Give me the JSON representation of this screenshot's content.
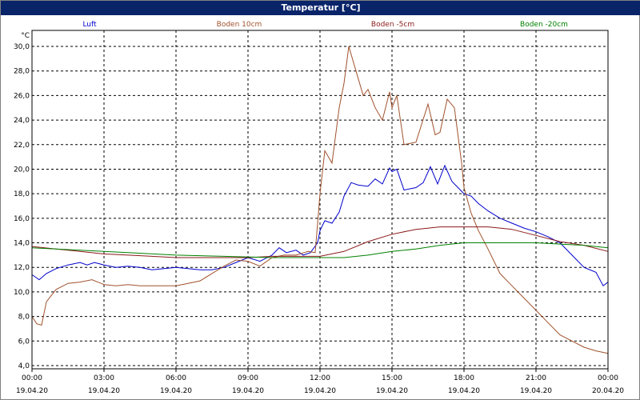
{
  "window": {
    "title": "Temperatur [°C]"
  },
  "chart_data": {
    "type": "line",
    "title": "Temperatur [°C]",
    "xlabel": "",
    "ylabel": "°C",
    "ylim": [
      4,
      31
    ],
    "yticks": [
      4,
      6,
      8,
      10,
      12,
      14,
      16,
      18,
      20,
      22,
      24,
      26,
      28,
      30
    ],
    "ytick_labels": [
      "4,0",
      "6,0",
      "8,0",
      "10,0",
      "12,0",
      "14,0",
      "16,0",
      "18,0",
      "20,0",
      "22,0",
      "24,0",
      "26,0",
      "28,0",
      "30,0"
    ],
    "xlim": [
      0,
      24
    ],
    "xticks": [
      0,
      3,
      6,
      9,
      12,
      15,
      18,
      21,
      24
    ],
    "xtick_labels": [
      [
        "00:00",
        "19.04.20"
      ],
      [
        "03:00",
        "19.04.20"
      ],
      [
        "06:00",
        "19.04.20"
      ],
      [
        "09:00",
        "19.04.20"
      ],
      [
        "12:00",
        "19.04.20"
      ],
      [
        "15:00",
        "19.04.20"
      ],
      [
        "18:00",
        "19.04.20"
      ],
      [
        "21:00",
        "19.04.20"
      ],
      [
        "00:00",
        "20.04.20"
      ]
    ],
    "grid": true,
    "legend_position": "top",
    "series": [
      {
        "name": "Luft",
        "color": "#0000cc",
        "x": [
          0,
          0.3,
          0.6,
          1,
          1.5,
          2,
          2.3,
          2.6,
          3,
          3.5,
          4,
          4.5,
          5,
          5.5,
          6,
          6.5,
          7,
          7.5,
          8,
          8.5,
          9,
          9.5,
          10,
          10.3,
          10.6,
          11,
          11.3,
          11.6,
          11.9,
          12,
          12.2,
          12.5,
          12.8,
          13,
          13.3,
          13.6,
          14,
          14.3,
          14.6,
          14.9,
          15,
          15.2,
          15.5,
          16,
          16.3,
          16.6,
          16.9,
          17.2,
          17.5,
          17.8,
          18,
          18.3,
          18.6,
          19,
          19.5,
          20,
          20.5,
          21,
          21.5,
          22,
          22.5,
          23,
          23.5,
          23.8,
          24
        ],
        "y": [
          11.4,
          11.0,
          11.5,
          11.9,
          12.2,
          12.4,
          12.2,
          12.4,
          12.2,
          12.0,
          12.1,
          12.0,
          11.8,
          11.9,
          12.0,
          11.9,
          11.8,
          11.8,
          12.0,
          12.4,
          12.8,
          12.5,
          13.0,
          13.6,
          13.2,
          13.4,
          13.0,
          13.2,
          14.0,
          15.0,
          15.8,
          15.6,
          16.5,
          17.8,
          18.9,
          18.7,
          18.6,
          19.2,
          18.8,
          20.1,
          19.8,
          20.0,
          18.3,
          18.5,
          18.9,
          20.2,
          18.8,
          20.3,
          19.0,
          18.4,
          18.0,
          17.8,
          17.2,
          16.6,
          16.0,
          15.6,
          15.2,
          14.9,
          14.5,
          14.0,
          13.0,
          12.0,
          11.6,
          10.5,
          10.8
        ]
      },
      {
        "name": "Boden 10cm",
        "color": "#a0522d",
        "x": [
          0,
          0.2,
          0.4,
          0.6,
          1,
          1.5,
          2,
          2.5,
          3,
          3.5,
          4,
          4.5,
          5,
          5.5,
          6,
          6.5,
          7,
          7.5,
          8,
          8.5,
          9,
          9.5,
          10,
          10.5,
          11,
          11.5,
          11.8,
          12,
          12.2,
          12.5,
          12.8,
          13,
          13.2,
          13.5,
          13.8,
          14,
          14.3,
          14.6,
          14.9,
          15,
          15.2,
          15.5,
          16,
          16.5,
          16.8,
          17,
          17.3,
          17.6,
          17.9,
          18,
          18.3,
          18.6,
          19,
          19.5,
          20,
          20.5,
          21,
          21.5,
          22,
          22.5,
          23,
          23.5,
          24
        ],
        "y": [
          8.0,
          7.4,
          7.3,
          9.2,
          10.2,
          10.7,
          10.8,
          11.0,
          10.6,
          10.5,
          10.6,
          10.5,
          10.5,
          10.5,
          10.5,
          10.7,
          10.9,
          11.5,
          12.1,
          12.6,
          12.5,
          12.1,
          12.8,
          13.0,
          13.0,
          13.3,
          13.2,
          18.0,
          21.5,
          20.5,
          25.0,
          27.0,
          30.0,
          28.0,
          26.0,
          26.5,
          25.0,
          24.0,
          26.3,
          25.0,
          26.0,
          22.0,
          22.2,
          25.3,
          22.8,
          23.0,
          25.7,
          25.0,
          20.5,
          18.5,
          16.4,
          15.0,
          13.5,
          11.5,
          10.5,
          9.5,
          8.5,
          7.5,
          6.5,
          6.0,
          5.5,
          5.2,
          5.0
        ]
      },
      {
        "name": "Boden -5cm",
        "color": "#8b1a1a",
        "x": [
          0,
          1,
          2,
          3,
          4,
          5,
          6,
          7,
          8,
          9,
          10,
          11,
          12,
          13,
          14,
          15,
          16,
          17,
          18,
          18.5,
          19,
          20,
          21,
          22,
          23,
          24
        ],
        "y": [
          13.7,
          13.5,
          13.3,
          13.1,
          13.0,
          12.9,
          12.8,
          12.8,
          12.8,
          12.8,
          12.9,
          12.9,
          12.9,
          13.3,
          14.1,
          14.7,
          15.1,
          15.3,
          15.3,
          15.3,
          15.3,
          15.1,
          14.6,
          14.1,
          13.8,
          13.3
        ]
      },
      {
        "name": "Boden -20cm",
        "color": "#008000",
        "x": [
          0,
          2,
          4,
          6,
          8,
          10,
          12,
          13,
          14,
          15,
          16,
          17,
          18,
          19,
          20,
          21,
          22,
          23,
          24
        ],
        "y": [
          13.6,
          13.4,
          13.2,
          13.0,
          12.9,
          12.8,
          12.8,
          12.8,
          13.0,
          13.3,
          13.5,
          13.8,
          14.0,
          14.0,
          14.0,
          14.0,
          13.9,
          13.8,
          13.6
        ]
      }
    ]
  }
}
